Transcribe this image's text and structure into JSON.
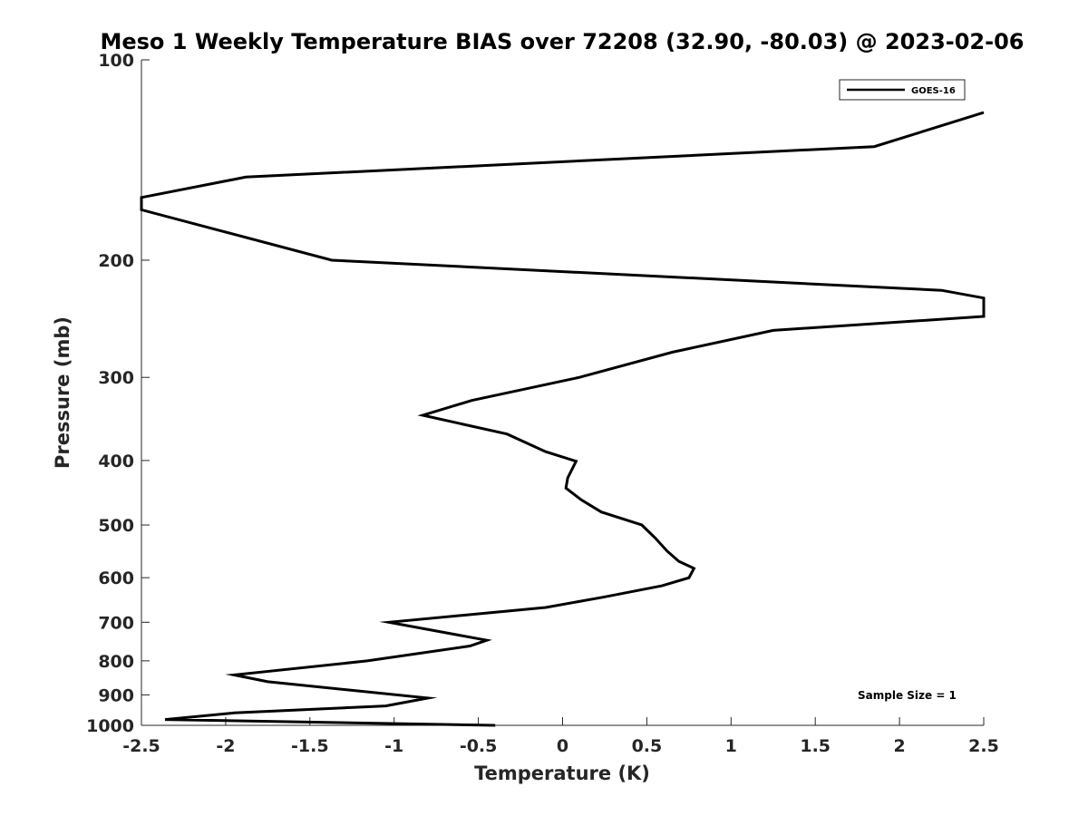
{
  "chart_data": {
    "type": "line",
    "title": "Meso 1 Weekly Temperature BIAS over 72208 (32.90, -80.03) @ 2023-02-06",
    "xlabel": "Temperature (K)",
    "ylabel": "Pressure (mb)",
    "xlim": [
      -2.5,
      2.5
    ],
    "ylim": [
      100,
      1000
    ],
    "y_scale": "log",
    "y_reversed": true,
    "x_ticks": [
      "-2.5",
      "-2",
      "-1.5",
      "-1",
      "-0.5",
      "0",
      "0.5",
      "1",
      "1.5",
      "2",
      "2.5"
    ],
    "y_ticks": [
      "100",
      "200",
      "300",
      "400",
      "500",
      "600",
      "700",
      "800",
      "900",
      "1000"
    ],
    "grid": false,
    "legend_position": "top-right",
    "annotation": "Sample Size = 1",
    "series": [
      {
        "name": "GOES-16",
        "color": "#000000",
        "points": [
          {
            "x": 2.5,
            "y": 120
          },
          {
            "x": 1.85,
            "y": 135
          },
          {
            "x": -1.88,
            "y": 150
          },
          {
            "x": -2.5,
            "y": 161
          },
          {
            "x": -2.5,
            "y": 168
          },
          {
            "x": -1.37,
            "y": 200
          },
          {
            "x": 2.25,
            "y": 222
          },
          {
            "x": 2.5,
            "y": 228
          },
          {
            "x": 2.5,
            "y": 243
          },
          {
            "x": 1.25,
            "y": 255
          },
          {
            "x": 0.65,
            "y": 275
          },
          {
            "x": 0.1,
            "y": 300
          },
          {
            "x": -0.54,
            "y": 325
          },
          {
            "x": -0.83,
            "y": 342
          },
          {
            "x": -0.33,
            "y": 365
          },
          {
            "x": -0.1,
            "y": 388
          },
          {
            "x": 0.08,
            "y": 401
          },
          {
            "x": 0.03,
            "y": 425
          },
          {
            "x": 0.02,
            "y": 440
          },
          {
            "x": 0.11,
            "y": 458
          },
          {
            "x": 0.23,
            "y": 478
          },
          {
            "x": 0.47,
            "y": 500
          },
          {
            "x": 0.55,
            "y": 523
          },
          {
            "x": 0.62,
            "y": 547
          },
          {
            "x": 0.69,
            "y": 567
          },
          {
            "x": 0.78,
            "y": 581
          },
          {
            "x": 0.75,
            "y": 600
          },
          {
            "x": 0.59,
            "y": 617
          },
          {
            "x": 0.24,
            "y": 642
          },
          {
            "x": -0.1,
            "y": 665
          },
          {
            "x": -1.03,
            "y": 700
          },
          {
            "x": -0.45,
            "y": 745
          },
          {
            "x": -0.55,
            "y": 760
          },
          {
            "x": -1.16,
            "y": 800
          },
          {
            "x": -1.95,
            "y": 840
          },
          {
            "x": -1.75,
            "y": 860
          },
          {
            "x": -0.8,
            "y": 910
          },
          {
            "x": -1.05,
            "y": 935
          },
          {
            "x": -1.95,
            "y": 958
          },
          {
            "x": -2.36,
            "y": 980
          },
          {
            "x": -0.4,
            "y": 1000
          }
        ]
      }
    ]
  }
}
